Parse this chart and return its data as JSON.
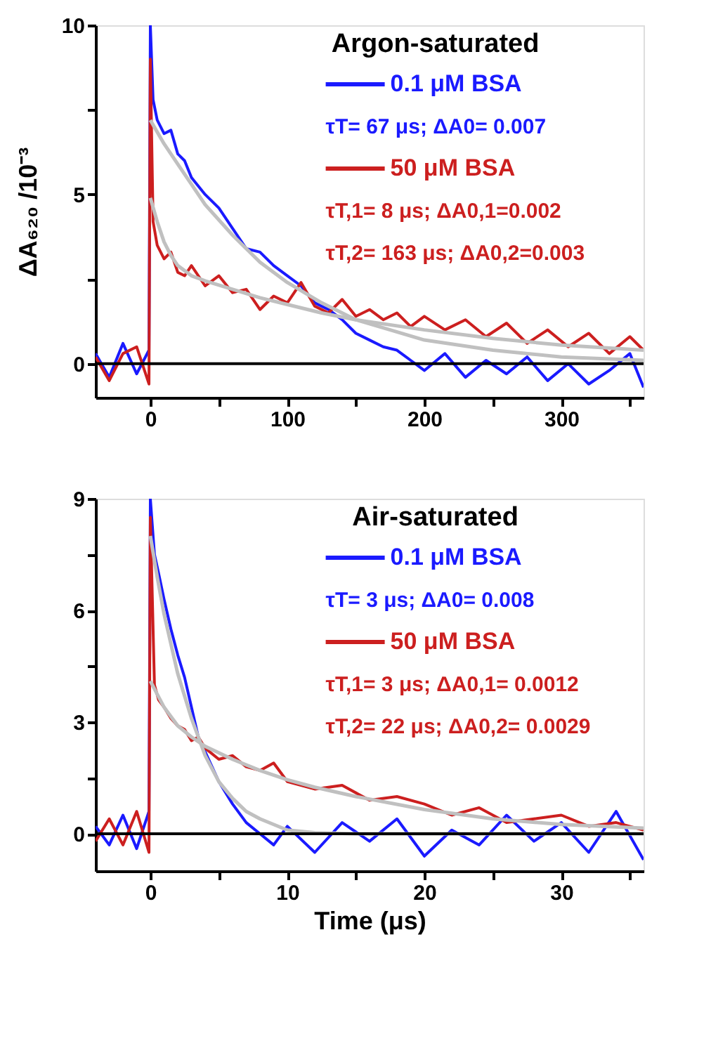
{
  "chart_data": [
    {
      "type": "line",
      "title": "Argon-saturated",
      "ylabel": "ΔA₆₂₀ /10⁻³",
      "xlim": [
        -40,
        360
      ],
      "ylim": [
        -1,
        10
      ],
      "xticks": [
        0,
        {
          "value": 50,
          "label": null
        },
        100,
        {
          "value": 150,
          "label": null
        },
        200,
        {
          "value": 250,
          "label": null
        },
        300,
        {
          "value": 350,
          "label": null
        }
      ],
      "yticks": [
        0,
        {
          "value": 2.5,
          "label": null
        },
        5,
        {
          "value": 7.5,
          "label": null
        },
        10
      ],
      "grid": false,
      "legend": "top right",
      "line_style": "solid",
      "marker": "none",
      "series": [
        {
          "name": "0.1 μM BSA",
          "color": "#1a1aff",
          "x": [
            -40,
            -30,
            -20,
            -10,
            -1,
            0,
            2,
            5,
            10,
            15,
            20,
            25,
            30,
            40,
            50,
            60,
            70,
            80,
            90,
            100,
            110,
            120,
            130,
            140,
            150,
            160,
            170,
            180,
            190,
            200,
            215,
            230,
            245,
            260,
            275,
            290,
            305,
            320,
            335,
            350,
            360
          ],
          "values": [
            0.3,
            -0.4,
            0.6,
            -0.3,
            0.4,
            10,
            7.8,
            7.2,
            6.8,
            6.9,
            6.2,
            6.0,
            5.5,
            5.0,
            4.6,
            4.0,
            3.4,
            3.3,
            2.9,
            2.6,
            2.3,
            1.8,
            1.6,
            1.3,
            0.9,
            0.7,
            0.5,
            0.4,
            0.1,
            -0.2,
            0.3,
            -0.4,
            0.1,
            -0.3,
            0.2,
            -0.5,
            0.0,
            -0.6,
            -0.2,
            0.3,
            -0.7
          ]
        },
        {
          "name": "50 μM BSA",
          "color": "#cc1f1f",
          "x": [
            -40,
            -30,
            -20,
            -10,
            -1,
            0,
            2,
            5,
            10,
            15,
            20,
            25,
            30,
            40,
            50,
            60,
            70,
            80,
            90,
            100,
            110,
            120,
            130,
            140,
            150,
            160,
            170,
            180,
            190,
            200,
            215,
            230,
            245,
            260,
            275,
            290,
            305,
            320,
            335,
            350,
            360
          ],
          "values": [
            0.2,
            -0.5,
            0.3,
            0.5,
            -0.6,
            9,
            4.2,
            3.5,
            3.1,
            3.3,
            2.7,
            2.6,
            2.9,
            2.3,
            2.6,
            2.1,
            2.2,
            1.6,
            2.0,
            1.8,
            2.4,
            1.7,
            1.5,
            1.9,
            1.4,
            1.6,
            1.3,
            1.5,
            1.1,
            1.4,
            1.0,
            1.3,
            0.8,
            1.2,
            0.6,
            1.0,
            0.5,
            0.9,
            0.3,
            0.8,
            0.4
          ]
        },
        {
          "color": "#c0c0c0",
          "x": [
            0,
            10,
            20,
            30,
            40,
            60,
            80,
            100,
            125,
            150,
            175,
            200,
            250,
            300,
            360
          ],
          "values": [
            7.2,
            6.5,
            5.9,
            5.3,
            4.7,
            3.8,
            3.0,
            2.4,
            1.8,
            1.3,
            1.0,
            0.7,
            0.4,
            0.2,
            0.1
          ]
        },
        {
          "color": "#c0c0c0",
          "x": [
            0,
            5,
            10,
            15,
            20,
            30,
            40,
            60,
            80,
            100,
            125,
            150,
            200,
            250,
            300,
            360
          ],
          "values": [
            4.9,
            4.2,
            3.6,
            3.2,
            2.9,
            2.6,
            2.45,
            2.2,
            1.95,
            1.75,
            1.5,
            1.3,
            1.0,
            0.75,
            0.55,
            0.4
          ]
        }
      ],
      "ref_lines": [
        {
          "axis": "y",
          "value": 0,
          "color": "#000000"
        }
      ],
      "annotations": [
        "τT= 67 μs; ΔA0= 0.007",
        "τT,1= 8 μs; ΔA0,1=0.002",
        "τT,2= 163 μs; ΔA0,2=0.003"
      ]
    },
    {
      "type": "line",
      "title": "Air-saturated",
      "xlabel": "Time (μs)",
      "xlim": [
        -4,
        36
      ],
      "ylim": [
        -1,
        9
      ],
      "xticks": [
        0,
        {
          "value": 5,
          "label": null
        },
        10,
        {
          "value": 15,
          "label": null
        },
        20,
        {
          "value": 25,
          "label": null
        },
        30,
        {
          "value": 35,
          "label": null
        }
      ],
      "yticks": [
        0,
        {
          "value": 1.5,
          "label": null
        },
        3,
        {
          "value": 4.5,
          "label": null
        },
        6,
        {
          "value": 7.5,
          "label": null
        },
        9
      ],
      "grid": false,
      "legend": "top right",
      "line_style": "solid",
      "marker": "none",
      "series": [
        {
          "name": "0.1 μM BSA",
          "color": "#1a1aff",
          "x": [
            -4,
            -3,
            -2,
            -1,
            -0.1,
            0,
            0.3,
            0.6,
            1,
            1.5,
            2,
            2.5,
            3,
            3.5,
            4,
            5,
            6,
            7,
            8,
            9,
            10,
            12,
            14,
            16,
            18,
            20,
            22,
            24,
            26,
            28,
            30,
            32,
            34,
            36
          ],
          "values": [
            0.2,
            -0.3,
            0.5,
            -0.4,
            0.6,
            9,
            7.5,
            7.0,
            6.3,
            5.5,
            4.8,
            4.2,
            3.4,
            2.6,
            2.2,
            1.4,
            0.8,
            0.3,
            0.0,
            -0.3,
            0.2,
            -0.5,
            0.3,
            -0.2,
            0.4,
            -0.6,
            0.1,
            -0.3,
            0.5,
            -0.2,
            0.3,
            -0.5,
            0.6,
            -0.7
          ]
        },
        {
          "name": "50 μM BSA",
          "color": "#cc1f1f",
          "x": [
            -4,
            -3,
            -2,
            -1,
            -0.1,
            0,
            0.3,
            0.6,
            1,
            1.5,
            2,
            2.5,
            3,
            3.5,
            4,
            5,
            6,
            7,
            8,
            9,
            10,
            12,
            14,
            16,
            18,
            20,
            22,
            24,
            26,
            28,
            30,
            32,
            34,
            36
          ],
          "values": [
            -0.2,
            0.4,
            -0.3,
            0.6,
            -0.5,
            8.5,
            4.0,
            3.6,
            3.4,
            3.1,
            2.9,
            2.8,
            2.5,
            2.6,
            2.3,
            2.0,
            2.1,
            1.8,
            1.7,
            1.9,
            1.4,
            1.2,
            1.3,
            0.9,
            1.0,
            0.8,
            0.5,
            0.7,
            0.3,
            0.4,
            0.5,
            0.2,
            0.3,
            0.1
          ]
        },
        {
          "color": "#c0c0c0",
          "x": [
            0,
            0.5,
            1,
            1.5,
            2,
            3,
            4,
            5,
            6,
            7,
            8,
            10,
            12,
            15,
            20,
            30,
            36
          ],
          "values": [
            8.0,
            6.9,
            5.9,
            5.1,
            4.3,
            3.1,
            2.1,
            1.4,
            0.95,
            0.6,
            0.4,
            0.1,
            0.03,
            0,
            0,
            0,
            0
          ]
        },
        {
          "color": "#c0c0c0",
          "x": [
            0,
            1,
            2,
            3,
            4,
            6,
            8,
            10,
            12,
            15,
            20,
            25,
            30,
            36
          ],
          "values": [
            4.1,
            3.4,
            2.9,
            2.6,
            2.35,
            2.0,
            1.7,
            1.45,
            1.25,
            1.0,
            0.65,
            0.4,
            0.25,
            0.15
          ]
        }
      ],
      "ref_lines": [
        {
          "axis": "y",
          "value": 0,
          "color": "#000000"
        }
      ],
      "annotations": [
        "τT= 3 μs; ΔA0= 0.008",
        "τT,1= 3 μs;  ΔA0,1= 0.0012",
        "τT,2= 22 μs; ΔA0,2= 0.0029"
      ]
    }
  ]
}
